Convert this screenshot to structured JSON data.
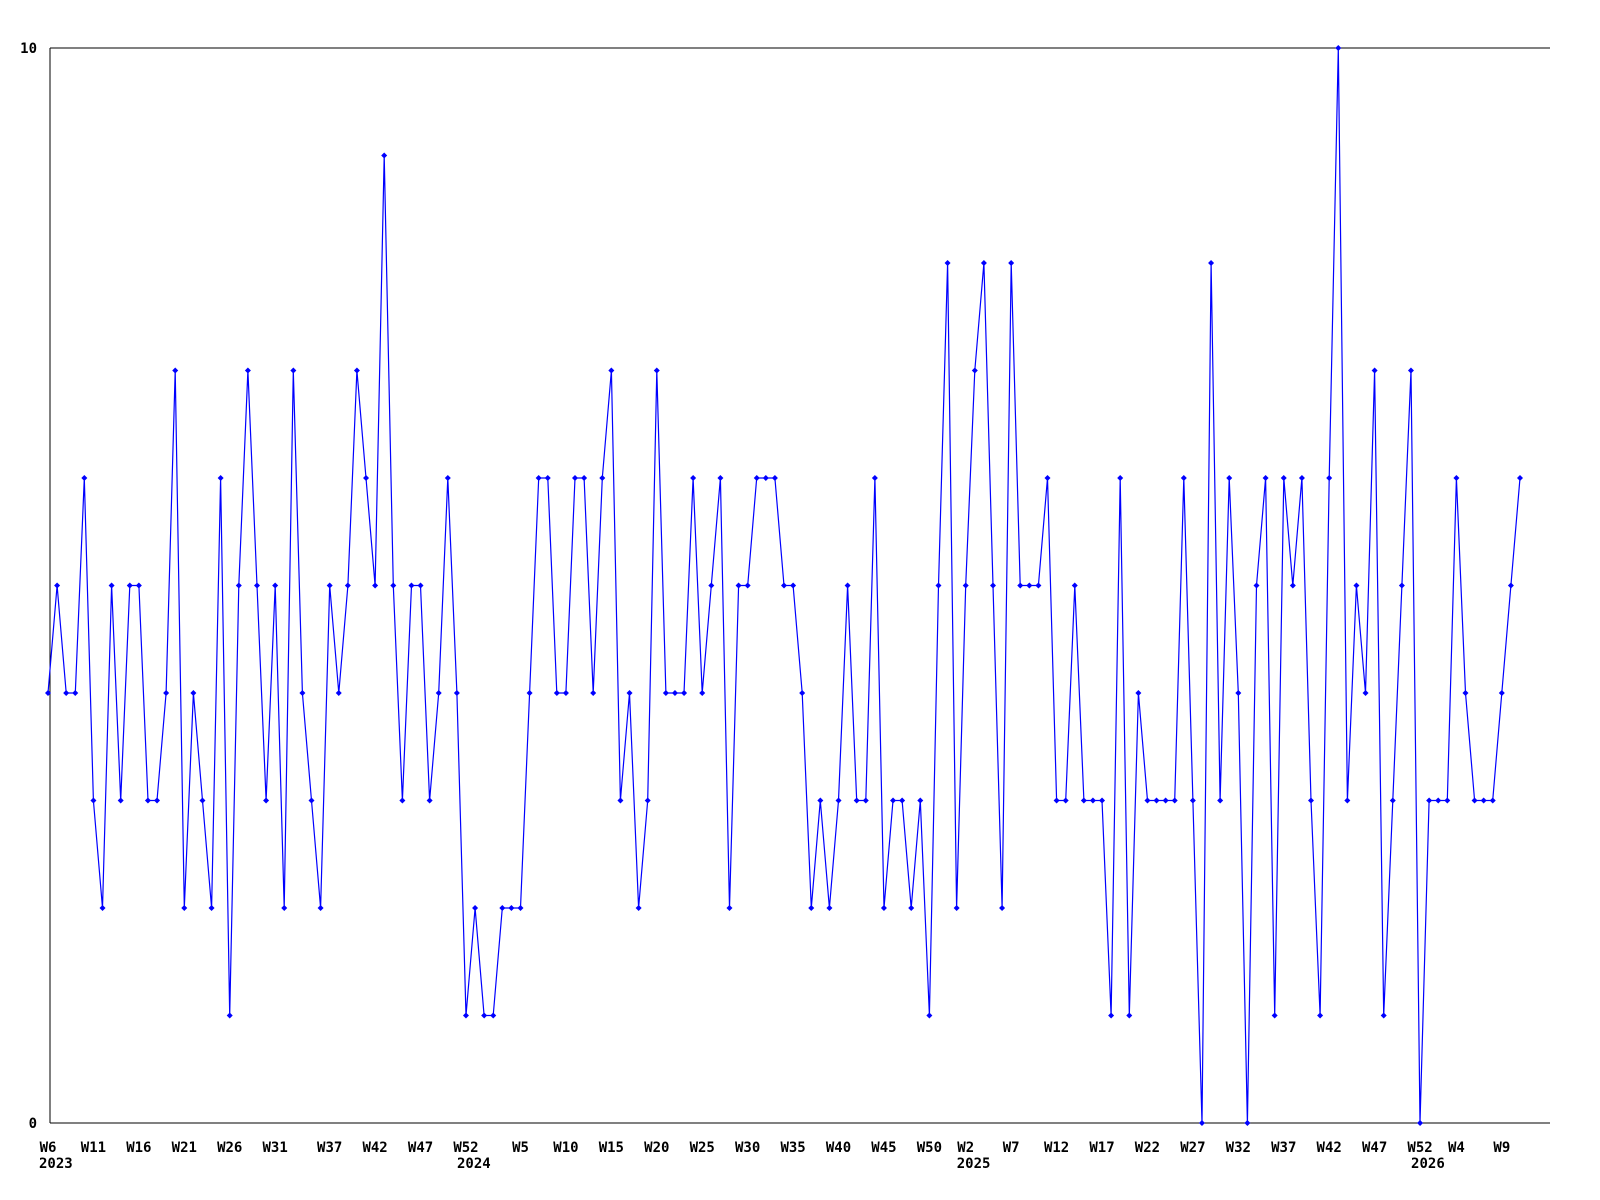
{
  "chart_data": {
    "type": "line",
    "title": "",
    "xlabel": "",
    "ylabel": "",
    "line_color": "#0000ff",
    "marker": "diamond",
    "axis_color": "#000000",
    "background_color": "#ffffff",
    "grid": false,
    "legend": "none",
    "ylim": [
      0,
      10
    ],
    "y_tick_labels": [
      "0",
      "10"
    ],
    "x_start": "2023-W6",
    "x_end": "2026-W11",
    "point_count": 163,
    "values": [
      4,
      5,
      4,
      4,
      6,
      3,
      2,
      5,
      3,
      5,
      5,
      3,
      3,
      4,
      7,
      2,
      4,
      3,
      2,
      6,
      1,
      5,
      7,
      5,
      3,
      5,
      2,
      7,
      4,
      3,
      2,
      5,
      4,
      5,
      7,
      6,
      5,
      9,
      5,
      3,
      5,
      5,
      3,
      4,
      6,
      4,
      1,
      2,
      1,
      1,
      2,
      2,
      2,
      4,
      6,
      6,
      4,
      4,
      6,
      6,
      4,
      6,
      7,
      3,
      4,
      2,
      3,
      7,
      4,
      4,
      4,
      6,
      4,
      5,
      6,
      2,
      5,
      5,
      6,
      6,
      6,
      5,
      5,
      4,
      2,
      3,
      2,
      3,
      5,
      3,
      3,
      6,
      2,
      3,
      3,
      2,
      3,
      1,
      5,
      8,
      2,
      5,
      7,
      8,
      5,
      2,
      8,
      5,
      5,
      5,
      6,
      3,
      3,
      5,
      3,
      3,
      3,
      1,
      6,
      1,
      4,
      3,
      3,
      3,
      3,
      6,
      3,
      0,
      8,
      3,
      6,
      4,
      0,
      5,
      6,
      1,
      6,
      5,
      6,
      3,
      1,
      6,
      10,
      3,
      5,
      4,
      7,
      1,
      3,
      5,
      7,
      0,
      3,
      3,
      3,
      6,
      4,
      3,
      3,
      3,
      4,
      5,
      6
    ],
    "x_ticks": [
      {
        "label": "W6",
        "k": 0,
        "year": "2023"
      },
      {
        "label": "W11",
        "k": 5
      },
      {
        "label": "W16",
        "k": 10
      },
      {
        "label": "W21",
        "k": 15
      },
      {
        "label": "W26",
        "k": 20
      },
      {
        "label": "W31",
        "k": 25
      },
      {
        "label": "W37",
        "k": 31
      },
      {
        "label": "W42",
        "k": 36
      },
      {
        "label": "W47",
        "k": 41
      },
      {
        "label": "W52",
        "k": 46,
        "year": "2024"
      },
      {
        "label": "W5",
        "k": 52
      },
      {
        "label": "W10",
        "k": 57
      },
      {
        "label": "W15",
        "k": 62
      },
      {
        "label": "W20",
        "k": 67
      },
      {
        "label": "W25",
        "k": 72
      },
      {
        "label": "W30",
        "k": 77
      },
      {
        "label": "W35",
        "k": 82
      },
      {
        "label": "W40",
        "k": 87
      },
      {
        "label": "W45",
        "k": 92
      },
      {
        "label": "W50",
        "k": 97
      },
      {
        "label": "W2",
        "k": 101,
        "year": "2025"
      },
      {
        "label": "W7",
        "k": 106
      },
      {
        "label": "W12",
        "k": 111
      },
      {
        "label": "W17",
        "k": 116
      },
      {
        "label": "W22",
        "k": 121
      },
      {
        "label": "W27",
        "k": 126
      },
      {
        "label": "W32",
        "k": 131
      },
      {
        "label": "W37",
        "k": 136
      },
      {
        "label": "W42",
        "k": 141
      },
      {
        "label": "W47",
        "k": 146
      },
      {
        "label": "W52",
        "k": 151,
        "year": "2026"
      },
      {
        "label": "W4",
        "k": 155
      },
      {
        "label": "W9",
        "k": 160
      }
    ]
  }
}
